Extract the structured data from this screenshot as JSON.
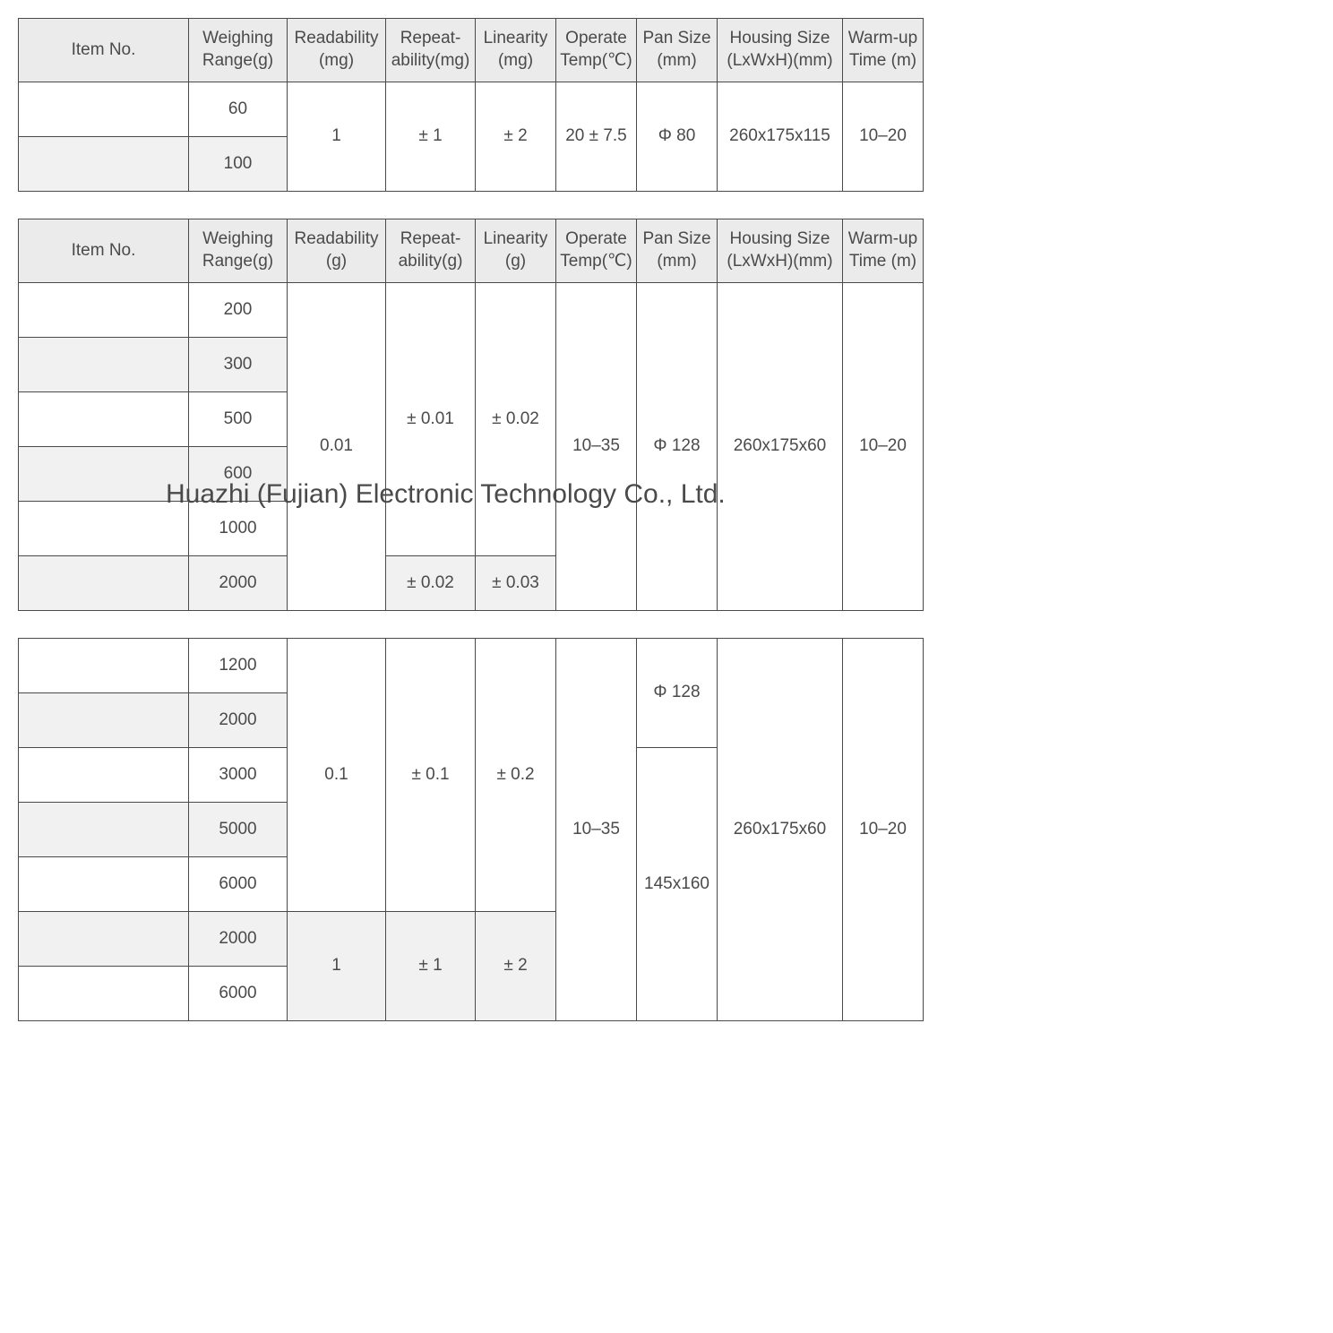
{
  "watermark": "Huazhi (Fujian) Electronic Technology Co., Ltd.",
  "headers": {
    "item": "Item No.",
    "weighing": "Weighing Range(g)",
    "readability_mg": "Readability (mg)",
    "readability_g": "Readability (g)",
    "repeat_mg": "Repeat-ability(mg)",
    "repeat_g": "Repeat-ability(g)",
    "linearity_mg": "Linearity (mg)",
    "linearity_g": "Linearity (g)",
    "optemp": "Operate Temp(℃)",
    "pansize": "Pan Size (mm)",
    "housing": "Housing Size (LxWxH)(mm)",
    "warmup": "Warm-up Time (m)"
  },
  "table1": {
    "r1": {
      "wr": "60"
    },
    "r2": {
      "wr": "100"
    },
    "readability": "1",
    "repeat": "± 1",
    "linearity": "± 2",
    "optemp": "20 ± 7.5",
    "pansize": "Φ 80",
    "housing": "260x175x115",
    "warmup": "10–20"
  },
  "table2": {
    "r1": {
      "wr": "200"
    },
    "r2": {
      "wr": "300"
    },
    "r3": {
      "wr": "500"
    },
    "r4": {
      "wr": "600"
    },
    "r5": {
      "wr": "1000"
    },
    "r6": {
      "wr": "2000"
    },
    "readability": "0.01",
    "repeat_a": "± 0.01",
    "linearity_a": "± 0.02",
    "repeat_b": "± 0.02",
    "linearity_b": "± 0.03",
    "optemp": "10–35",
    "pansize": "Φ 128",
    "housing": "260x175x60",
    "warmup": "10–20"
  },
  "table3": {
    "r1": {
      "wr": "1200"
    },
    "r2": {
      "wr": "2000"
    },
    "r3": {
      "wr": "3000"
    },
    "r4": {
      "wr": "5000"
    },
    "r5": {
      "wr": "6000"
    },
    "r6": {
      "wr": "2000"
    },
    "r7": {
      "wr": "6000"
    },
    "readability_a": "0.1",
    "repeat_a": "± 0.1",
    "linearity_a": "± 0.2",
    "readability_b": "1",
    "repeat_b": "± 1",
    "linearity_b": "± 2",
    "optemp": "10–35",
    "pansize_a": "Φ 128",
    "pansize_b": "145x160",
    "housing": "260x175x60",
    "warmup": "10–20"
  }
}
